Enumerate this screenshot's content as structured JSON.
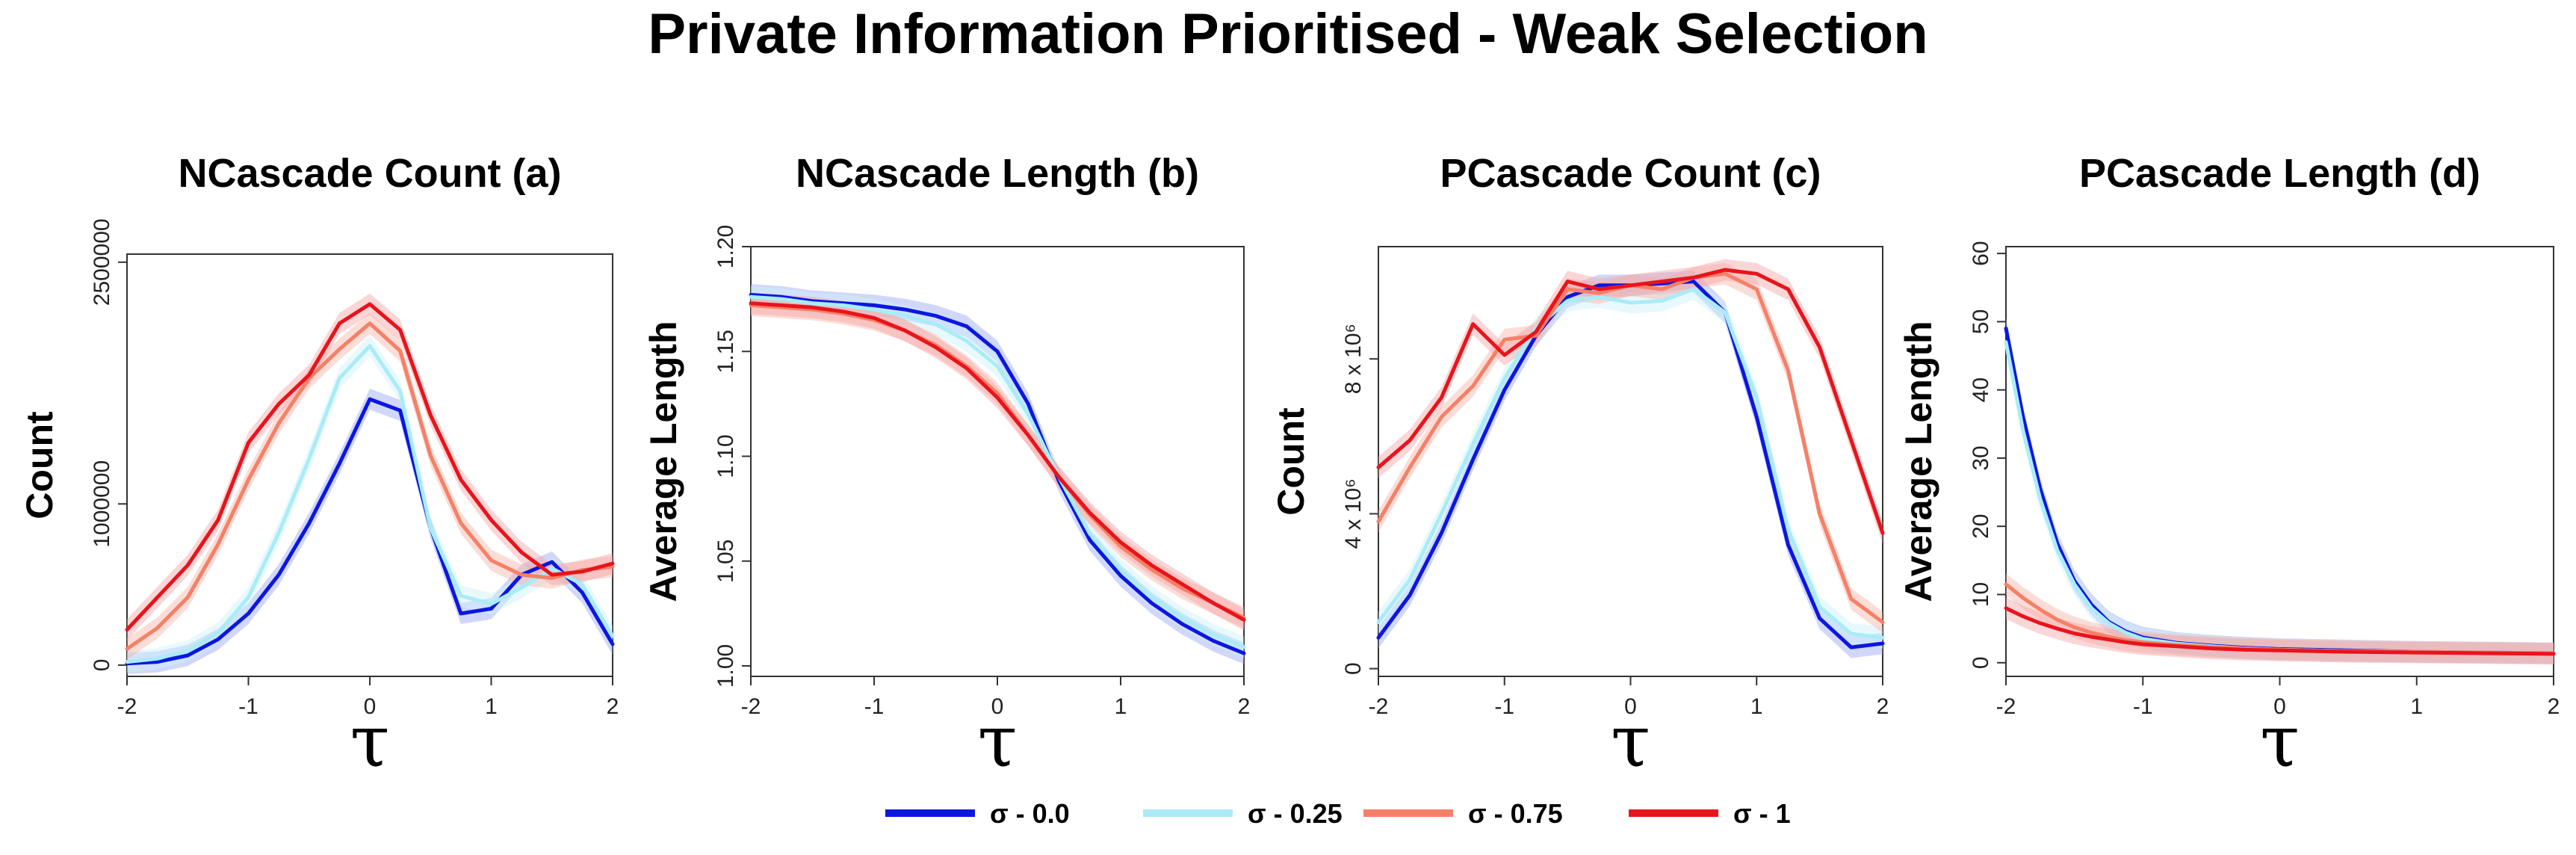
{
  "title": "Private Information Prioritised - Weak Selection",
  "colors": {
    "sigma_0": "#0b17e0",
    "sigma_025": "#a9ecf7",
    "sigma_075": "#f58068",
    "sigma_1": "#e8141c"
  },
  "legend": [
    {
      "label": "σ - 0.0",
      "color": "#0b17e0"
    },
    {
      "label": "σ - 0.25",
      "color": "#a9ecf7"
    },
    {
      "label": "σ - 0.75",
      "color": "#f58068"
    },
    {
      "label": "σ - 1",
      "color": "#e8141c"
    }
  ],
  "chart_data": [
    {
      "type": "line",
      "title": "NCascade Count (a)",
      "xlabel": "τ",
      "ylabel": "Count",
      "xlim": [
        -2,
        2
      ],
      "ylim": [
        -70000,
        2550000
      ],
      "xticks": [
        -2,
        -1,
        0,
        1,
        2
      ],
      "yticks": [
        {
          "value": 0,
          "label": "0"
        },
        {
          "value": 1000000,
          "label": "1000000"
        },
        {
          "value": 2500000,
          "label": "2500000"
        }
      ],
      "x": [
        -2,
        -1.75,
        -1.5,
        -1.25,
        -1,
        -0.75,
        -0.5,
        -0.25,
        0,
        0.25,
        0.5,
        0.75,
        1,
        1.25,
        1.5,
        1.75,
        2
      ],
      "series": [
        {
          "name": "σ - 0.0",
          "color": "#0b17e0",
          "values": [
            10000,
            20000,
            60000,
            160000,
            320000,
            560000,
            880000,
            1250000,
            1650000,
            1580000,
            850000,
            320000,
            350000,
            560000,
            640000,
            450000,
            130000
          ]
        },
        {
          "name": "σ - 0.25",
          "color": "#a9ecf7",
          "values": [
            20000,
            40000,
            90000,
            200000,
            420000,
            820000,
            1280000,
            1780000,
            1980000,
            1700000,
            850000,
            430000,
            380000,
            480000,
            600000,
            500000,
            180000
          ]
        },
        {
          "name": "σ - 0.75",
          "color": "#f58068",
          "values": [
            100000,
            230000,
            420000,
            750000,
            1150000,
            1500000,
            1780000,
            1960000,
            2120000,
            1950000,
            1300000,
            880000,
            650000,
            560000,
            540000,
            590000,
            610000
          ]
        },
        {
          "name": "σ - 1",
          "color": "#e8141c",
          "values": [
            220000,
            420000,
            620000,
            900000,
            1380000,
            1620000,
            1800000,
            2120000,
            2240000,
            2080000,
            1550000,
            1150000,
            900000,
            700000,
            560000,
            580000,
            630000
          ]
        }
      ]
    },
    {
      "type": "line",
      "title": "NCascade Length (b)",
      "xlabel": "τ",
      "ylabel": "Average Length",
      "xlim": [
        -2,
        2
      ],
      "ylim": [
        0.995,
        1.2
      ],
      "xticks": [
        -2,
        -1,
        0,
        1,
        2
      ],
      "yticks": [
        {
          "value": 1.0,
          "label": "1.00"
        },
        {
          "value": 1.05,
          "label": "1.05"
        },
        {
          "value": 1.1,
          "label": "1.10"
        },
        {
          "value": 1.15,
          "label": "1.15"
        },
        {
          "value": 1.2,
          "label": "1.20"
        }
      ],
      "x": [
        -2,
        -1.75,
        -1.5,
        -1.25,
        -1,
        -0.75,
        -0.5,
        -0.25,
        0,
        0.25,
        0.5,
        0.75,
        1,
        1.25,
        1.5,
        1.75,
        2
      ],
      "series": [
        {
          "name": "σ - 0.0",
          "color": "#0b17e0",
          "values": [
            1.177,
            1.176,
            1.174,
            1.173,
            1.172,
            1.17,
            1.167,
            1.162,
            1.15,
            1.125,
            1.088,
            1.06,
            1.043,
            1.03,
            1.02,
            1.012,
            1.006
          ]
        },
        {
          "name": "σ - 0.25",
          "color": "#a9ecf7",
          "values": [
            1.176,
            1.175,
            1.173,
            1.172,
            1.17,
            1.167,
            1.163,
            1.155,
            1.143,
            1.12,
            1.09,
            1.063,
            1.046,
            1.033,
            1.023,
            1.015,
            1.009
          ]
        },
        {
          "name": "σ - 0.75",
          "color": "#f58068",
          "values": [
            1.172,
            1.171,
            1.17,
            1.168,
            1.165,
            1.16,
            1.153,
            1.143,
            1.13,
            1.11,
            1.09,
            1.072,
            1.057,
            1.046,
            1.037,
            1.03,
            1.023
          ]
        },
        {
          "name": "σ - 1",
          "color": "#e8141c",
          "values": [
            1.173,
            1.172,
            1.171,
            1.169,
            1.166,
            1.16,
            1.152,
            1.142,
            1.128,
            1.11,
            1.09,
            1.073,
            1.059,
            1.048,
            1.039,
            1.03,
            1.022
          ]
        }
      ]
    },
    {
      "type": "line",
      "title": "PCascade Count (c)",
      "xlabel": "τ",
      "ylabel": "Count",
      "xlim": [
        -2,
        2
      ],
      "ylim": [
        -200000,
        10900000
      ],
      "xticks": [
        -2,
        -1,
        0,
        1,
        2
      ],
      "yticks": [
        {
          "value": 0,
          "label": "0"
        },
        {
          "value": 4000000,
          "label": "4 x 10⁶"
        },
        {
          "value": 8000000,
          "label": "8 x 10⁶"
        }
      ],
      "x": [
        -2,
        -1.75,
        -1.5,
        -1.25,
        -1,
        -0.75,
        -0.5,
        -0.25,
        0,
        0.25,
        0.5,
        0.75,
        1,
        1.25,
        1.5,
        1.75,
        2
      ],
      "series": [
        {
          "name": "σ - 0.0",
          "color": "#0b17e0",
          "values": [
            800000,
            1900000,
            3500000,
            5400000,
            7200000,
            8600000,
            9600000,
            9900000,
            9900000,
            9950000,
            10000000,
            9200000,
            6500000,
            3200000,
            1300000,
            550000,
            650000
          ]
        },
        {
          "name": "σ - 0.25",
          "color": "#a9ecf7",
          "values": [
            1200000,
            2300000,
            4000000,
            5800000,
            7500000,
            8800000,
            9500000,
            9600000,
            9450000,
            9500000,
            9800000,
            9200000,
            7000000,
            3600000,
            1600000,
            900000,
            800000
          ]
        },
        {
          "name": "σ - 0.75",
          "color": "#f58068",
          "values": [
            3800000,
            5200000,
            6500000,
            7300000,
            8500000,
            8600000,
            9800000,
            9700000,
            9900000,
            9800000,
            10100000,
            10200000,
            9800000,
            7700000,
            4000000,
            1800000,
            1200000
          ]
        },
        {
          "name": "σ - 1",
          "color": "#e8141c",
          "values": [
            5200000,
            5900000,
            7000000,
            8900000,
            8100000,
            8700000,
            10000000,
            9800000,
            9900000,
            10000000,
            10100000,
            10300000,
            10200000,
            9800000,
            8300000,
            5900000,
            3500000
          ]
        }
      ]
    },
    {
      "type": "line",
      "title": "PCascade Length (d)",
      "xlabel": "τ",
      "ylabel": "Average Length",
      "xlim": [
        -2,
        2
      ],
      "ylim": [
        -2,
        61
      ],
      "xticks": [
        -2,
        -1,
        0,
        1,
        2
      ],
      "yticks": [
        {
          "value": 0,
          "label": "0"
        },
        {
          "value": 10,
          "label": "10"
        },
        {
          "value": 20,
          "label": "20"
        },
        {
          "value": 30,
          "label": "30"
        },
        {
          "value": 40,
          "label": "40"
        },
        {
          "value": 50,
          "label": "50"
        },
        {
          "value": 60,
          "label": "60"
        }
      ],
      "x": [
        -2,
        -1.875,
        -1.75,
        -1.625,
        -1.5,
        -1.375,
        -1.25,
        -1.125,
        -1,
        -0.75,
        -0.5,
        -0.25,
        0,
        0.5,
        1,
        1.5,
        2
      ],
      "series": [
        {
          "name": "σ - 0.0",
          "color": "#0b17e0",
          "values": [
            49,
            36,
            25.5,
            17.5,
            12,
            8.5,
            6,
            4.6,
            3.7,
            2.9,
            2.5,
            2.2,
            2.0,
            1.8,
            1.6,
            1.5,
            1.4
          ]
        },
        {
          "name": "σ - 0.25",
          "color": "#a9ecf7",
          "values": [
            47,
            34,
            24,
            16.5,
            11.5,
            8,
            5.8,
            4.4,
            3.5,
            2.8,
            2.4,
            2.1,
            1.9,
            1.7,
            1.6,
            1.5,
            1.4
          ]
        },
        {
          "name": "σ - 0.75",
          "color": "#f58068",
          "values": [
            11.5,
            9.5,
            7.8,
            6.3,
            5.2,
            4.4,
            3.8,
            3.3,
            3.0,
            2.6,
            2.3,
            2.1,
            1.9,
            1.7,
            1.6,
            1.5,
            1.4
          ]
        },
        {
          "name": "σ - 1",
          "color": "#e8141c",
          "values": [
            8,
            6.8,
            5.8,
            5.0,
            4.3,
            3.8,
            3.4,
            3.0,
            2.7,
            2.4,
            2.1,
            1.9,
            1.8,
            1.6,
            1.5,
            1.4,
            1.3
          ]
        }
      ]
    }
  ]
}
